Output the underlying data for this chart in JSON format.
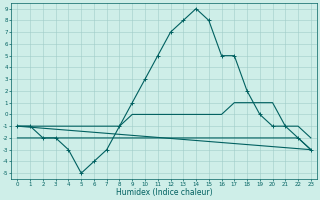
{
  "title": "",
  "xlabel": "Humidex (Indice chaleur)",
  "xlim": [
    -0.5,
    23.5
  ],
  "ylim": [
    -5.5,
    9.5
  ],
  "yticks": [
    -5,
    -4,
    -3,
    -2,
    -1,
    0,
    1,
    2,
    3,
    4,
    5,
    6,
    7,
    8,
    9
  ],
  "xticks": [
    0,
    1,
    2,
    3,
    4,
    5,
    6,
    7,
    8,
    9,
    10,
    11,
    12,
    13,
    14,
    15,
    16,
    17,
    18,
    19,
    20,
    21,
    22,
    23
  ],
  "background_color": "#ceeee8",
  "grid_color": "#a0ccc8",
  "line_color": "#006060",
  "lines": [
    {
      "x": [
        0,
        1,
        2,
        3,
        4,
        5,
        6,
        7,
        8,
        9,
        10,
        11,
        12,
        13,
        14,
        15,
        16,
        17,
        18,
        19,
        20,
        21,
        22,
        23
      ],
      "y": [
        -1,
        -1,
        -2,
        -2,
        -3,
        -5,
        -4,
        -3,
        -1,
        1,
        3,
        5,
        7,
        8,
        9,
        8,
        5,
        5,
        2,
        0,
        -1,
        -1,
        -2,
        -3
      ],
      "marker": "+",
      "linewidth": 0.8
    },
    {
      "x": [
        0,
        1,
        2,
        3,
        4,
        5,
        6,
        7,
        8,
        9,
        10,
        11,
        12,
        13,
        14,
        15,
        16,
        17,
        18,
        19,
        20,
        21,
        22,
        23
      ],
      "y": [
        -1,
        -1,
        -1,
        -1,
        -1,
        -1,
        -1,
        -1,
        -1,
        0,
        0,
        0,
        0,
        0,
        0,
        0,
        0,
        1,
        1,
        1,
        1,
        -1,
        -1,
        -2
      ],
      "marker": null,
      "linewidth": 0.8
    },
    {
      "x": [
        0,
        1,
        2,
        3,
        4,
        5,
        6,
        7,
        8,
        9,
        10,
        11,
        12,
        13,
        14,
        15,
        16,
        17,
        18,
        19,
        20,
        21,
        22,
        23
      ],
      "y": [
        -2,
        -2,
        -2,
        -2,
        -2,
        -2,
        -2,
        -2,
        -2,
        -2,
        -2,
        -2,
        -2,
        -2,
        -2,
        -2,
        -2,
        -2,
        -2,
        -2,
        -2,
        -2,
        -2,
        -3
      ],
      "marker": null,
      "linewidth": 0.8
    },
    {
      "x": [
        0,
        23
      ],
      "y": [
        -1,
        -3
      ],
      "marker": null,
      "linewidth": 0.8
    }
  ],
  "tick_labelsize": 4,
  "xlabel_fontsize": 5.5
}
